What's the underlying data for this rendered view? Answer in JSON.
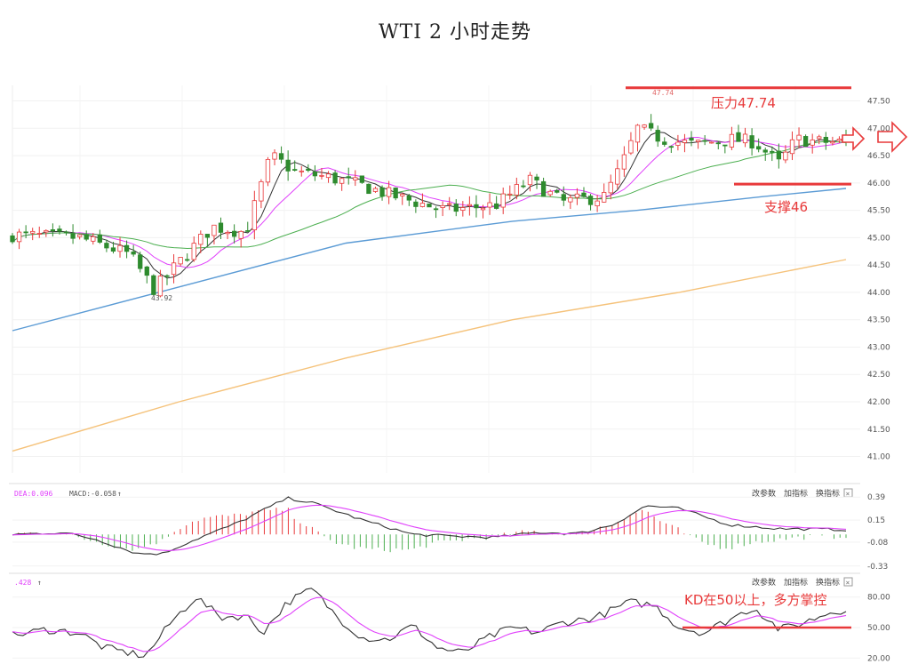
{
  "title": "WTI 2 小时走势",
  "colors": {
    "up": "#e8393a",
    "down": "#2e8b2e",
    "ma_blue": "#5b9bd5",
    "ma_orange": "#f5c27a",
    "ma_green": "#4caf50",
    "ma_pink": "#e040fb",
    "ma_black": "#333333",
    "accent": "#e8393a"
  },
  "chart_data": [
    {
      "type": "candlestick",
      "title": "WTI 2 小时走势",
      "ylim": [
        40.7,
        47.85
      ],
      "yticks": [
        "47.50",
        "47.00",
        "46.50",
        "46.00",
        "45.50",
        "45.00",
        "44.50",
        "44.00",
        "43.50",
        "43.00",
        "42.50",
        "42.00",
        "41.50",
        "41.00"
      ],
      "high_label": "47.74",
      "low_label": "43.92",
      "annotations": [
        {
          "text": "压力47.74",
          "level": 47.74
        },
        {
          "text": "支撑46",
          "level": 45.98
        }
      ],
      "moving_averages": [
        {
          "color": "orange",
          "points": [
            [
              0,
              41.1
            ],
            [
              20,
              42.0
            ],
            [
              40,
              42.8
            ],
            [
              60,
              43.5
            ],
            [
              80,
              44.0
            ],
            [
              100,
              44.6
            ]
          ]
        },
        {
          "color": "blue",
          "points": [
            [
              0,
              43.3
            ],
            [
              20,
              44.1
            ],
            [
              40,
              44.9
            ],
            [
              60,
              45.3
            ],
            [
              75,
              45.5
            ],
            [
              90,
              45.75
            ],
            [
              100,
              45.9
            ]
          ]
        }
      ]
    },
    {
      "type": "bar",
      "title": "MACD",
      "labels": {
        "dea": "DEA:0.096",
        "macd": "MACD:-0.058"
      },
      "buttons": [
        "改参数",
        "加指标",
        "换指标"
      ],
      "yticks": [
        "0.39",
        "0.15",
        "-0.08",
        "-0.33"
      ],
      "ylim": [
        -0.36,
        0.42
      ]
    },
    {
      "type": "line",
      "title": "KD",
      "labels": {
        "k": ".428"
      },
      "buttons": [
        "改参数",
        "加指标",
        "换指标"
      ],
      "yticks": [
        "80.00",
        "50.00",
        "20.00"
      ],
      "ylim": [
        15,
        92
      ],
      "annotation": {
        "text": "KD在50以上，多方掌控",
        "level": 50
      }
    }
  ]
}
